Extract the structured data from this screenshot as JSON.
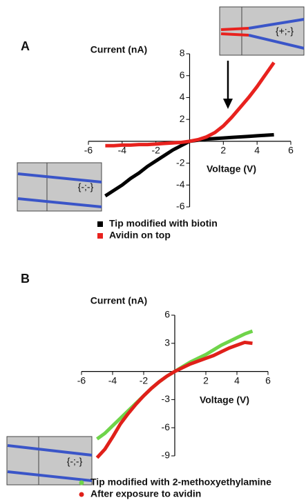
{
  "chart_data": [
    {
      "type": "line",
      "panel": "A",
      "ylabel": "Current (nA)",
      "xlabel": "Voltage (V)",
      "marker": "square",
      "annotations": [
        "{+;-}",
        "{-;-}"
      ],
      "x": [
        -5,
        -4.5,
        -4,
        -3.5,
        -3,
        -2.5,
        -2,
        -1.5,
        -1,
        -0.5,
        0,
        0.5,
        1,
        1.5,
        2,
        2.5,
        3,
        3.5,
        4,
        4.5,
        5
      ],
      "series": [
        {
          "name": "Tip modified with biotin",
          "color": "#000000",
          "values": [
            -5.0,
            -4.5,
            -4.0,
            -3.4,
            -2.9,
            -2.3,
            -1.8,
            -1.3,
            -0.8,
            -0.4,
            0,
            0.1,
            0.2,
            0.25,
            0.3,
            0.35,
            0.4,
            0.45,
            0.5,
            0.55,
            0.6
          ]
        },
        {
          "name": "Avidin on top",
          "color": "#e8221e",
          "values": [
            -0.4,
            -0.4,
            -0.35,
            -0.35,
            -0.3,
            -0.3,
            -0.25,
            -0.2,
            -0.15,
            -0.1,
            0,
            0.15,
            0.4,
            0.8,
            1.4,
            2.2,
            3.1,
            4.0,
            5.0,
            6.1,
            7.2
          ]
        }
      ],
      "xlim": [
        -6,
        6
      ],
      "xticks": [
        -6,
        -4,
        -2,
        2,
        4,
        6
      ],
      "ylim": [
        -6,
        8
      ],
      "yticks": [
        -6,
        -4,
        -2,
        2,
        4,
        6,
        8
      ]
    },
    {
      "type": "line",
      "panel": "B",
      "ylabel": "Current (nA)",
      "xlabel": "Voltage (V)",
      "marker": "circle",
      "annotations": [
        "{-;-}"
      ],
      "x": [
        -5,
        -4.5,
        -4,
        -3.5,
        -3,
        -2.5,
        -2,
        -1.5,
        -1,
        -0.5,
        0,
        0.5,
        1,
        1.5,
        2,
        2.5,
        3,
        3.5,
        4,
        4.5,
        5
      ],
      "series": [
        {
          "name": "Tip modified with 2-methoxyethylamine",
          "color": "#6fd44a",
          "values": [
            -7.2,
            -6.6,
            -5.8,
            -5.0,
            -4.2,
            -3.4,
            -2.6,
            -1.8,
            -1.1,
            -0.5,
            0,
            0.5,
            1.0,
            1.4,
            1.8,
            2.3,
            2.8,
            3.2,
            3.6,
            4.0,
            4.3
          ]
        },
        {
          "name": "After exposure to avidin",
          "color": "#e0201a",
          "values": [
            -9.2,
            -8.3,
            -7.0,
            -5.6,
            -4.5,
            -3.5,
            -2.6,
            -1.8,
            -1.1,
            -0.5,
            0,
            0.4,
            0.8,
            1.1,
            1.4,
            1.7,
            2.1,
            2.5,
            2.8,
            3.1,
            3.0
          ]
        }
      ],
      "xlim": [
        -6,
        6
      ],
      "xticks": [
        -6,
        -4,
        -2,
        2,
        4,
        6
      ],
      "ylim": [
        -9,
        6
      ],
      "yticks": [
        -9,
        -6,
        -3,
        3,
        6
      ]
    }
  ]
}
